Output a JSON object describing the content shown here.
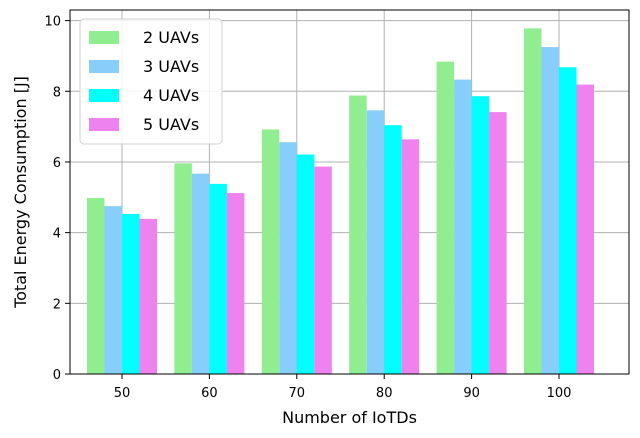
{
  "chart_data": {
    "type": "bar",
    "title": "",
    "xlabel": "Number of IoTDs",
    "ylabel": "Total Energy Consumption [J]",
    "categories": [
      "50",
      "60",
      "70",
      "80",
      "90",
      "100"
    ],
    "ylim": [
      0,
      10.3
    ],
    "yticks": [
      "0",
      "2",
      "4",
      "6",
      "8",
      "10"
    ],
    "grid": true,
    "legend_position": "top-left",
    "series": [
      {
        "name": "2 UAVs",
        "color": "#90ee90",
        "values": [
          4.98,
          5.96,
          6.92,
          7.88,
          8.84,
          9.78
        ]
      },
      {
        "name": "3 UAVs",
        "color": "#87cefa",
        "values": [
          4.75,
          5.67,
          6.56,
          7.46,
          8.33,
          9.25
        ]
      },
      {
        "name": "4 UAVs",
        "color": "#00ffff",
        "values": [
          4.53,
          5.38,
          6.21,
          7.04,
          7.86,
          8.68
        ]
      },
      {
        "name": "5 UAVs",
        "color": "#ee82ee",
        "values": [
          4.39,
          5.12,
          5.87,
          6.64,
          7.41,
          8.19
        ]
      }
    ]
  }
}
